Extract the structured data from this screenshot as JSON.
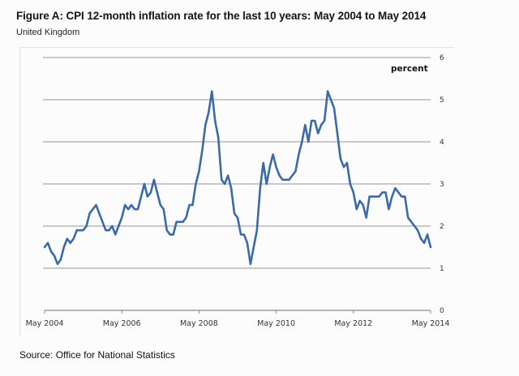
{
  "header": {
    "title": "Figure A: CPI 12-month inflation rate for the last 10 years: May 2004 to May 2014",
    "subtitle": "United Kingdom"
  },
  "footer": {
    "source": "Source: Office for National Statistics"
  },
  "colors": {
    "series": "#3b6aa8",
    "grid": "#a9a9ac",
    "background": "#fcfcfd"
  },
  "chart_data": {
    "type": "line",
    "title": "Figure A: CPI 12-month inflation rate for the last 10 years: May 2004 to May 2014",
    "subtitle": "United Kingdom",
    "xlabel": "",
    "ylabel": "percent",
    "ylim": [
      0,
      6
    ],
    "yticks": [
      0,
      1,
      2,
      3,
      4,
      5,
      6
    ],
    "ytick_labels": [
      "0",
      "1",
      "2",
      "3",
      "4",
      "5",
      "6"
    ],
    "y_axis_side": "right",
    "xticks": [
      "May 2004",
      "May 2006",
      "May 2008",
      "May 2010",
      "May 2012",
      "May 2014"
    ],
    "xtick_month_index": [
      0,
      24,
      48,
      72,
      96,
      120
    ],
    "grid": true,
    "legend": "none",
    "start": "May 2004",
    "end": "May 2014",
    "frequency": "monthly",
    "series": [
      {
        "name": "CPI 12-month inflation rate",
        "values": [
          1.5,
          1.6,
          1.4,
          1.3,
          1.1,
          1.2,
          1.5,
          1.7,
          1.6,
          1.7,
          1.9,
          1.9,
          1.9,
          2.0,
          2.3,
          2.4,
          2.5,
          2.3,
          2.1,
          1.9,
          1.9,
          2.0,
          1.8,
          2.0,
          2.2,
          2.5,
          2.4,
          2.5,
          2.4,
          2.4,
          2.7,
          3.0,
          2.7,
          2.8,
          3.1,
          2.8,
          2.5,
          2.4,
          1.9,
          1.8,
          1.8,
          2.1,
          2.1,
          2.1,
          2.2,
          2.5,
          2.5,
          3.0,
          3.3,
          3.8,
          4.4,
          4.7,
          5.2,
          4.5,
          4.1,
          3.1,
          3.0,
          3.2,
          2.9,
          2.3,
          2.2,
          1.8,
          1.8,
          1.6,
          1.1,
          1.5,
          1.9,
          2.9,
          3.5,
          3.0,
          3.4,
          3.7,
          3.4,
          3.2,
          3.1,
          3.1,
          3.1,
          3.2,
          3.3,
          3.7,
          4.0,
          4.4,
          4.0,
          4.5,
          4.5,
          4.2,
          4.4,
          4.5,
          5.2,
          5.0,
          4.8,
          4.2,
          3.6,
          3.4,
          3.5,
          3.0,
          2.8,
          2.4,
          2.6,
          2.5,
          2.2,
          2.7,
          2.7,
          2.7,
          2.7,
          2.8,
          2.8,
          2.4,
          2.7,
          2.9,
          2.8,
          2.7,
          2.7,
          2.2,
          2.1,
          2.0,
          1.9,
          1.7,
          1.6,
          1.8,
          1.5
        ]
      }
    ]
  }
}
